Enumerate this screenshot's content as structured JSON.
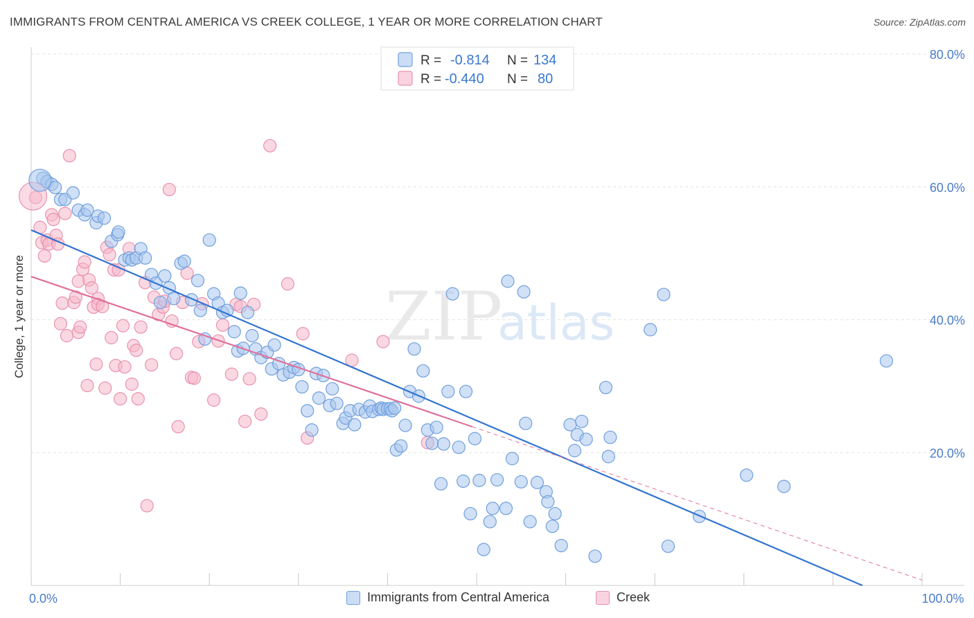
{
  "title": "IMMIGRANTS FROM CENTRAL AMERICA VS CREEK COLLEGE, 1 YEAR OR MORE CORRELATION CHART",
  "source": "Source: ZipAtlas.com",
  "watermark": {
    "zip": "ZIP",
    "atlas": "atlas"
  },
  "colors": {
    "blue_fill": "#a9c7ef",
    "blue_stroke": "#6f9fdc",
    "blue_line": "#3174d0",
    "pink_fill": "#f5b8cb",
    "pink_stroke": "#e891ae",
    "pink_line": "#e0709a",
    "axis_text": "#4a7cc9",
    "grid": "#e3e3e3"
  },
  "legend": {
    "rows": [
      {
        "r_label": "R =",
        "r_value": "-0.814",
        "n_label": "N =",
        "n_value": "134"
      },
      {
        "r_label": "R =",
        "r_value": "-0.440",
        "n_label": "N =",
        "n_value": "80"
      }
    ]
  },
  "bottom_legend": [
    "Immigrants from Central America",
    "Creek"
  ],
  "chart_data": {
    "type": "scatter",
    "xlabel": "",
    "ylabel": "College, 1 year or more",
    "xlim": [
      0,
      100
    ],
    "ylim": [
      0,
      80
    ],
    "x_tick_labels": [
      {
        "value": 0,
        "label": "0.0%"
      },
      {
        "value": 100,
        "label": "100.0%"
      }
    ],
    "y_tick_labels": [
      {
        "value": 20,
        "label": "20.0%"
      },
      {
        "value": 40,
        "label": "40.0%"
      },
      {
        "value": 60,
        "label": "60.0%"
      },
      {
        "value": 80,
        "label": "80.0%"
      }
    ],
    "grid": true,
    "legend_position": "top-center",
    "series": [
      {
        "name": "Immigrants from Central America",
        "color": "blue",
        "r": -0.814,
        "n": 134,
        "trend": {
          "x0": 0,
          "y0": 53.5,
          "x1": 93.3,
          "y1": 0
        },
        "points": [
          [
            1.3,
            61.3
          ],
          [
            1.8,
            60.8
          ],
          [
            2.3,
            60.4
          ],
          [
            2.7,
            59.9
          ],
          [
            3.3,
            58.1
          ],
          [
            3.8,
            58.1
          ],
          [
            4.7,
            59.1
          ],
          [
            5.3,
            56.5
          ],
          [
            6.0,
            55.8
          ],
          [
            6.3,
            56.5
          ],
          [
            7.3,
            54.6
          ],
          [
            7.5,
            55.6
          ],
          [
            8.2,
            55.3
          ],
          [
            9.0,
            51.8
          ],
          [
            9.7,
            52.8
          ],
          [
            9.8,
            53.2
          ],
          [
            10.5,
            49.0
          ],
          [
            11.0,
            49.3
          ],
          [
            11.3,
            49.0
          ],
          [
            11.8,
            49.3
          ],
          [
            12.3,
            50.7
          ],
          [
            12.8,
            49.3
          ],
          [
            13.5,
            46.8
          ],
          [
            14.0,
            45.5
          ],
          [
            14.5,
            42.6
          ],
          [
            15.0,
            46.6
          ],
          [
            15.5,
            44.8
          ],
          [
            16.0,
            43.2
          ],
          [
            16.8,
            48.5
          ],
          [
            17.2,
            48.8
          ],
          [
            18.0,
            43.0
          ],
          [
            18.7,
            45.9
          ],
          [
            19.0,
            41.4
          ],
          [
            19.5,
            37.1
          ],
          [
            20.0,
            52.0
          ],
          [
            20.5,
            43.9
          ],
          [
            21.0,
            42.5
          ],
          [
            21.5,
            41.1
          ],
          [
            22.0,
            41.4
          ],
          [
            22.8,
            38.2
          ],
          [
            23.2,
            35.3
          ],
          [
            23.5,
            44.0
          ],
          [
            23.8,
            35.7
          ],
          [
            24.3,
            41.1
          ],
          [
            24.8,
            37.6
          ],
          [
            25.2,
            35.6
          ],
          [
            25.8,
            34.3
          ],
          [
            26.5,
            35.1
          ],
          [
            27.0,
            32.6
          ],
          [
            27.3,
            36.2
          ],
          [
            27.8,
            33.4
          ],
          [
            28.3,
            31.7
          ],
          [
            29.0,
            32.1
          ],
          [
            29.5,
            32.8
          ],
          [
            30.0,
            32.5
          ],
          [
            30.4,
            29.9
          ],
          [
            31.0,
            26.3
          ],
          [
            31.5,
            23.4
          ],
          [
            32.0,
            31.9
          ],
          [
            32.3,
            28.2
          ],
          [
            32.8,
            31.6
          ],
          [
            33.5,
            27.1
          ],
          [
            33.8,
            29.6
          ],
          [
            34.3,
            27.4
          ],
          [
            35.0,
            24.4
          ],
          [
            35.3,
            25.2
          ],
          [
            35.8,
            26.3
          ],
          [
            36.3,
            24.2
          ],
          [
            36.8,
            26.5
          ],
          [
            37.5,
            26.1
          ],
          [
            38.0,
            27.0
          ],
          [
            38.3,
            26.2
          ],
          [
            39.0,
            26.5
          ],
          [
            39.3,
            26.7
          ],
          [
            39.5,
            26.5
          ],
          [
            40.0,
            26.6
          ],
          [
            40.3,
            26.6
          ],
          [
            40.5,
            26.3
          ],
          [
            40.8,
            26.7
          ],
          [
            41.0,
            20.4
          ],
          [
            41.5,
            21.0
          ],
          [
            42.0,
            24.1
          ],
          [
            42.5,
            29.2
          ],
          [
            43.0,
            35.6
          ],
          [
            43.5,
            28.5
          ],
          [
            44.0,
            32.3
          ],
          [
            44.5,
            23.4
          ],
          [
            45.0,
            21.4
          ],
          [
            45.5,
            23.8
          ],
          [
            46.0,
            15.3
          ],
          [
            46.3,
            21.3
          ],
          [
            46.8,
            29.2
          ],
          [
            47.3,
            43.9
          ],
          [
            48.0,
            20.8
          ],
          [
            48.5,
            15.7
          ],
          [
            48.8,
            29.2
          ],
          [
            49.3,
            10.8
          ],
          [
            49.8,
            22.1
          ],
          [
            50.3,
            15.8
          ],
          [
            50.8,
            5.4
          ],
          [
            51.5,
            9.6
          ],
          [
            51.8,
            11.6
          ],
          [
            52.3,
            15.9
          ],
          [
            53.3,
            11.6
          ],
          [
            53.5,
            45.8
          ],
          [
            54.0,
            19.1
          ],
          [
            55.0,
            15.6
          ],
          [
            55.3,
            44.2
          ],
          [
            55.5,
            24.4
          ],
          [
            56.0,
            9.6
          ],
          [
            56.8,
            15.5
          ],
          [
            57.8,
            14.1
          ],
          [
            58.0,
            12.6
          ],
          [
            58.5,
            8.9
          ],
          [
            58.8,
            10.8
          ],
          [
            59.5,
            6.0
          ],
          [
            60.5,
            24.2
          ],
          [
            61.0,
            20.3
          ],
          [
            61.3,
            22.7
          ],
          [
            61.8,
            24.7
          ],
          [
            62.3,
            22.0
          ],
          [
            63.3,
            4.4
          ],
          [
            64.5,
            29.8
          ],
          [
            64.8,
            19.4
          ],
          [
            65.0,
            22.3
          ],
          [
            69.5,
            38.5
          ],
          [
            71.0,
            43.8
          ],
          [
            71.5,
            5.9
          ],
          [
            75.0,
            10.4
          ],
          [
            80.3,
            16.6
          ],
          [
            84.5,
            14.9
          ],
          [
            96.0,
            33.8
          ]
        ]
      },
      {
        "name": "Creek",
        "color": "pink",
        "r": -0.44,
        "n": 80,
        "trend": {
          "x0": 0,
          "y0": 46.5,
          "x1": 49.5,
          "y1": 23.9
        },
        "trend_ext": {
          "x0": 49.5,
          "y0": 23.9,
          "x1": 100,
          "y1": 0.8
        },
        "points": [
          [
            0.5,
            58.4
          ],
          [
            1.0,
            53.9
          ],
          [
            1.2,
            51.6
          ],
          [
            1.5,
            49.6
          ],
          [
            1.8,
            52.0
          ],
          [
            2.0,
            51.4
          ],
          [
            2.3,
            55.8
          ],
          [
            2.5,
            55.1
          ],
          [
            2.8,
            52.7
          ],
          [
            3.0,
            51.4
          ],
          [
            3.3,
            39.4
          ],
          [
            3.5,
            42.5
          ],
          [
            3.8,
            56.0
          ],
          [
            4.0,
            37.6
          ],
          [
            4.3,
            64.7
          ],
          [
            4.8,
            42.6
          ],
          [
            5.0,
            43.4
          ],
          [
            5.3,
            38.1
          ],
          [
            5.3,
            45.8
          ],
          [
            5.5,
            38.9
          ],
          [
            5.8,
            47.6
          ],
          [
            6.0,
            48.7
          ],
          [
            6.3,
            30.1
          ],
          [
            6.5,
            46.0
          ],
          [
            6.8,
            44.8
          ],
          [
            7.0,
            41.9
          ],
          [
            7.3,
            33.3
          ],
          [
            7.5,
            43.2
          ],
          [
            7.5,
            42.3
          ],
          [
            8.0,
            42.0
          ],
          [
            8.3,
            29.7
          ],
          [
            8.5,
            50.9
          ],
          [
            8.8,
            49.8
          ],
          [
            9.0,
            37.3
          ],
          [
            9.3,
            47.5
          ],
          [
            9.5,
            33.1
          ],
          [
            9.8,
            47.5
          ],
          [
            10.0,
            28.1
          ],
          [
            10.3,
            39.1
          ],
          [
            10.5,
            32.9
          ],
          [
            11.0,
            50.7
          ],
          [
            11.3,
            30.3
          ],
          [
            11.5,
            36.1
          ],
          [
            11.8,
            35.4
          ],
          [
            12.0,
            28.1
          ],
          [
            12.3,
            38.9
          ],
          [
            12.8,
            45.6
          ],
          [
            13.0,
            12.0
          ],
          [
            13.5,
            33.2
          ],
          [
            13.8,
            43.4
          ],
          [
            14.3,
            40.8
          ],
          [
            14.8,
            41.9
          ],
          [
            15.0,
            42.8
          ],
          [
            15.5,
            59.6
          ],
          [
            15.8,
            39.8
          ],
          [
            16.3,
            34.9
          ],
          [
            16.5,
            23.9
          ],
          [
            17.0,
            42.6
          ],
          [
            17.5,
            47.0
          ],
          [
            18.0,
            31.3
          ],
          [
            18.3,
            31.2
          ],
          [
            18.8,
            36.7
          ],
          [
            19.2,
            42.4
          ],
          [
            20.5,
            27.9
          ],
          [
            21.0,
            36.8
          ],
          [
            21.5,
            39.2
          ],
          [
            22.5,
            31.8
          ],
          [
            23.0,
            42.3
          ],
          [
            23.5,
            42.0
          ],
          [
            24.0,
            24.7
          ],
          [
            24.5,
            31.1
          ],
          [
            25.0,
            42.3
          ],
          [
            25.8,
            25.8
          ],
          [
            26.8,
            66.2
          ],
          [
            28.8,
            45.4
          ],
          [
            30.5,
            37.9
          ],
          [
            31.0,
            22.2
          ],
          [
            36.0,
            33.9
          ],
          [
            39.5,
            36.7
          ],
          [
            44.5,
            21.5
          ]
        ]
      }
    ]
  }
}
